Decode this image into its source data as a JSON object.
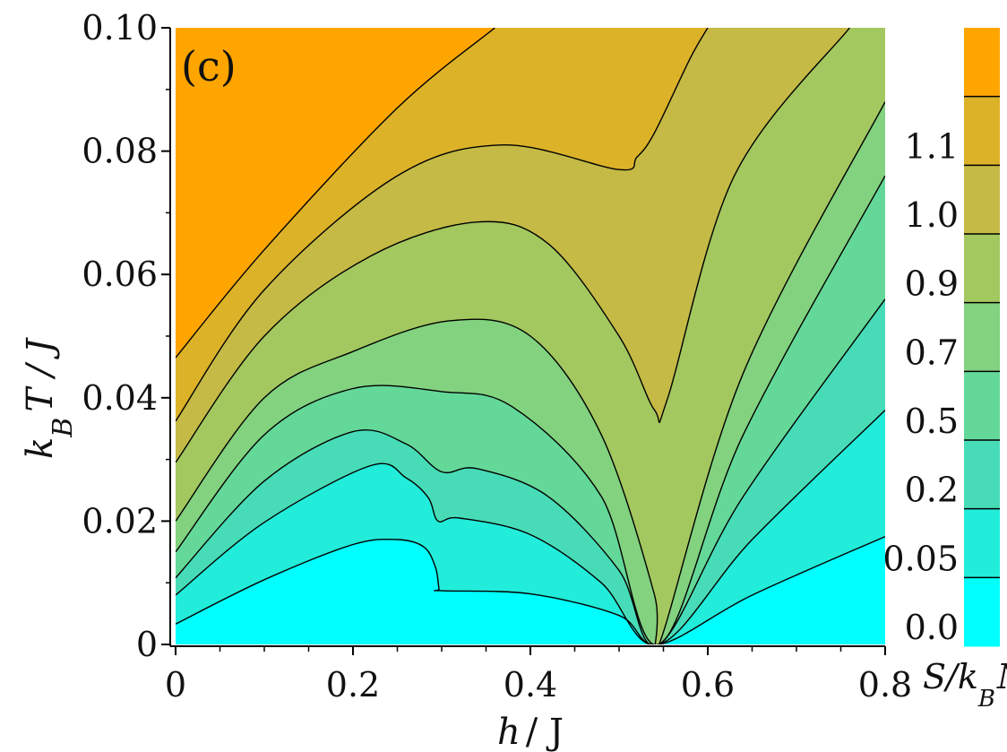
{
  "chart_data": {
    "type": "heatmap",
    "subtype": "filled-contour",
    "panel_label": "(c)",
    "xlabel": {
      "main": "h",
      "rest": "/ J"
    },
    "ylabel": {
      "k": "k",
      "sub": "B",
      "rest": "T / J"
    },
    "xlim": [
      0,
      0.8
    ],
    "ylim": [
      0,
      0.1
    ],
    "x_ticks": [
      "0",
      "0.2",
      "0.4",
      "0.6",
      "0.8"
    ],
    "x_tick_values": [
      0,
      0.2,
      0.4,
      0.6,
      0.8
    ],
    "y_ticks": [
      "0",
      "0.02",
      "0.04",
      "0.06",
      "0.08",
      "0.10"
    ],
    "y_tick_values": [
      0,
      0.02,
      0.04,
      0.06,
      0.08,
      0.1
    ],
    "colorbar": {
      "title_main": "S/k",
      "title_sub": "B",
      "title_end": "N",
      "level_labels": [
        "0.0",
        "0.05",
        "0.2",
        "0.5",
        "0.7",
        "0.9",
        "1.0",
        "1.1"
      ],
      "colors": [
        "#00ffff",
        "#22ecda",
        "#47dcb7",
        "#64d898",
        "#82d27f",
        "#a3c85f",
        "#c4ba45",
        "#dcb228",
        "#ffa500"
      ]
    },
    "contours": [
      [
        [
          0,
          0.0033
        ],
        [
          0.1,
          0.0105
        ],
        [
          0.2,
          0.0162
        ],
        [
          0.25,
          0.017
        ],
        [
          0.28,
          0.0158
        ],
        [
          0.293,
          0.0125
        ],
        [
          0.297,
          0.0091
        ],
        [
          0.3,
          0.0087
        ],
        [
          0.4,
          0.0082
        ],
        [
          0.5,
          0.0047
        ],
        [
          0.545,
          0.0
        ],
        [
          0.65,
          0.008
        ],
        [
          0.8,
          0.0175
        ]
      ],
      [
        [
          0,
          0.008
        ],
        [
          0.1,
          0.0198
        ],
        [
          0.22,
          0.029
        ],
        [
          0.26,
          0.027
        ],
        [
          0.285,
          0.0238
        ],
        [
          0.296,
          0.02
        ],
        [
          0.32,
          0.0205
        ],
        [
          0.4,
          0.0178
        ],
        [
          0.48,
          0.01
        ],
        [
          0.545,
          0.0
        ],
        [
          0.65,
          0.017
        ],
        [
          0.8,
          0.038
        ]
      ],
      [
        [
          0,
          0.0108
        ],
        [
          0.1,
          0.0265
        ],
        [
          0.2,
          0.0345
        ],
        [
          0.26,
          0.0325
        ],
        [
          0.3,
          0.028
        ],
        [
          0.34,
          0.0285
        ],
        [
          0.42,
          0.024
        ],
        [
          0.5,
          0.012
        ],
        [
          0.545,
          0.0
        ],
        [
          0.64,
          0.024
        ],
        [
          0.8,
          0.056
        ]
      ],
      [
        [
          0,
          0.015
        ],
        [
          0.1,
          0.034
        ],
        [
          0.2,
          0.0415
        ],
        [
          0.3,
          0.041
        ],
        [
          0.38,
          0.0385
        ],
        [
          0.48,
          0.024
        ],
        [
          0.545,
          0.0
        ],
        [
          0.64,
          0.034
        ],
        [
          0.8,
          0.076
        ]
      ],
      [
        [
          0,
          0.02
        ],
        [
          0.1,
          0.04
        ],
        [
          0.2,
          0.0475
        ],
        [
          0.31,
          0.0525
        ],
        [
          0.4,
          0.05
        ],
        [
          0.48,
          0.034
        ],
        [
          0.54,
          0.008
        ],
        [
          0.545,
          0.0
        ],
        [
          0.64,
          0.044
        ],
        [
          0.8,
          0.088
        ]
      ],
      [
        [
          0,
          0.0295
        ],
        [
          0.1,
          0.05
        ],
        [
          0.22,
          0.063
        ],
        [
          0.34,
          0.0685
        ],
        [
          0.42,
          0.065
        ],
        [
          0.5,
          0.05
        ],
        [
          0.54,
          0.038
        ],
        [
          0.555,
          0.04
        ],
        [
          0.63,
          0.076
        ],
        [
          0.76,
          0.1
        ]
      ],
      [
        [
          0,
          0.0362
        ],
        [
          0.1,
          0.0575
        ],
        [
          0.25,
          0.076
        ],
        [
          0.37,
          0.081
        ],
        [
          0.5,
          0.077
        ],
        [
          0.52,
          0.079
        ],
        [
          0.54,
          0.083
        ],
        [
          0.58,
          0.095
        ],
        [
          0.6,
          0.1
        ]
      ],
      [
        [
          0,
          0.0465
        ],
        [
          0.1,
          0.064
        ],
        [
          0.25,
          0.087
        ],
        [
          0.36,
          0.1
        ]
      ]
    ]
  }
}
